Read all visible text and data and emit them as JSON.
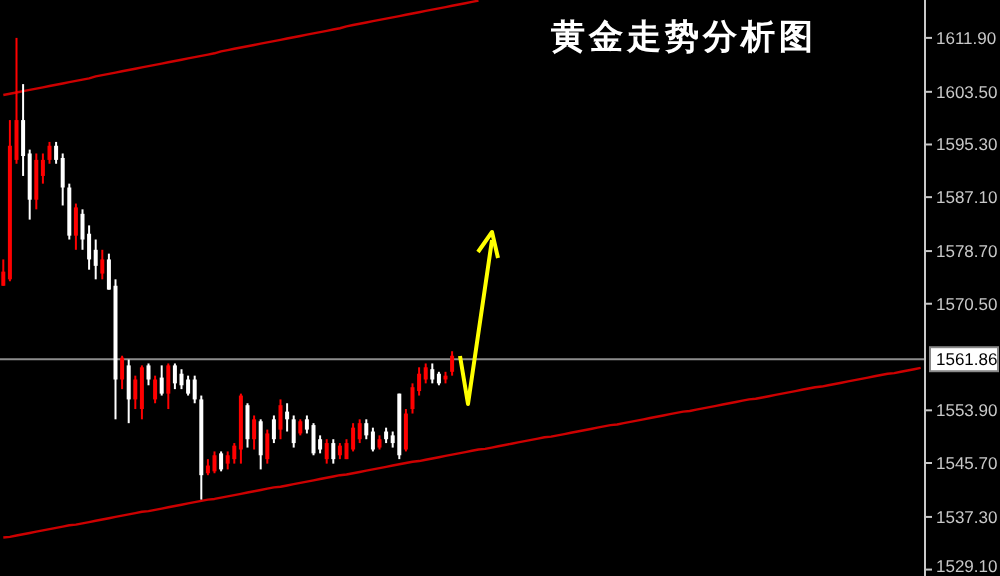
{
  "chart_data": {
    "type": "candlestick",
    "title": "黄金走势分析图",
    "categories": [
      null,
      null,
      null,
      null,
      null,
      null,
      null,
      null,
      null,
      null,
      null,
      null,
      null,
      null,
      null,
      null,
      null,
      null,
      null,
      null,
      null,
      null,
      null,
      null,
      null,
      null,
      null,
      null,
      null,
      null,
      null,
      null,
      null,
      null,
      null,
      null,
      null,
      null,
      null,
      null,
      null,
      null,
      null,
      null,
      null,
      null,
      null,
      null,
      null,
      null,
      null,
      null,
      null,
      null,
      null,
      null,
      null,
      null,
      null,
      null,
      null,
      null,
      null,
      null,
      null,
      null,
      null,
      null,
      null,
      null,
      null,
      null,
      null,
      null,
      null,
      null,
      null,
      null,
      null,
      null,
      null,
      null,
      null,
      null,
      null,
      null,
      null,
      null,
      null,
      null,
      null,
      null,
      null,
      null,
      null,
      null,
      null,
      null,
      null,
      null,
      null,
      null,
      null,
      null,
      null,
      null,
      null,
      null,
      null,
      null,
      null,
      null,
      null,
      null,
      null,
      null,
      null,
      null,
      null,
      null,
      null,
      null,
      null,
      null,
      null,
      null,
      null,
      null,
      null,
      null,
      null,
      null,
      null,
      null,
      null,
      null,
      null,
      null,
      null,
      null
    ],
    "ohlc": [
      [
        1573.3,
        1577.4,
        1573.3,
        1575.5
      ],
      [
        1574.3,
        1599.1,
        1574.0,
        1595.1
      ],
      [
        1592.9,
        1611.9,
        1592.3,
        1599.1
      ],
      [
        1599.1,
        1604.7,
        1590.4,
        1593.5
      ],
      [
        1593.9,
        1594.5,
        1583.6,
        1586.7
      ],
      [
        1586.7,
        1593.9,
        1585.2,
        1592.9
      ],
      [
        1590.4,
        1593.9,
        1589.2,
        1592.9
      ],
      [
        1592.9,
        1595.7,
        1592.3,
        1595.1
      ],
      [
        1595.1,
        1595.7,
        1592.3,
        1592.9
      ],
      [
        1593.2,
        1593.9,
        1585.8,
        1588.6
      ],
      [
        1588.6,
        1589.2,
        1580.5,
        1581.1
      ],
      [
        1581.1,
        1586.1,
        1578.9,
        1585.5
      ],
      [
        1584.5,
        1585.2,
        1578.9,
        1580.5
      ],
      [
        1581.4,
        1582.7,
        1575.8,
        1577.4
      ],
      [
        1578.9,
        1580.5,
        1574.3,
        1576.4
      ],
      [
        1575.2,
        1578.9,
        1574.3,
        1577.4
      ],
      [
        1577.4,
        1578.3,
        1572.7,
        1572.7
      ],
      [
        1573.3,
        1574.3,
        1552.5,
        1558.7
      ],
      [
        1558.7,
        1562.4,
        1557.2,
        1562.1
      ],
      [
        1560.9,
        1561.8,
        1551.9,
        1555.6
      ],
      [
        1555.6,
        1559.3,
        1554.1,
        1558.7
      ],
      [
        1554.1,
        1560.9,
        1552.5,
        1560.6
      ],
      [
        1560.9,
        1561.2,
        1557.8,
        1558.7
      ],
      [
        1555.6,
        1559.3,
        1555.0,
        1558.7
      ],
      [
        1559.0,
        1560.9,
        1556.2,
        1556.5
      ],
      [
        1556.5,
        1561.2,
        1554.1,
        1560.9
      ],
      [
        1560.9,
        1561.2,
        1557.2,
        1558.1
      ],
      [
        1559.6,
        1560.3,
        1557.2,
        1557.8
      ],
      [
        1558.7,
        1559.3,
        1556.2,
        1556.5
      ],
      [
        1558.7,
        1559.3,
        1555.0,
        1555.6
      ],
      [
        1555.6,
        1556.2,
        1540.0,
        1543.8
      ],
      [
        1544.1,
        1546.3,
        1543.8,
        1545.3
      ],
      [
        1544.4,
        1547.5,
        1544.1,
        1546.9
      ],
      [
        1547.2,
        1547.5,
        1544.4,
        1544.7
      ],
      [
        1545.6,
        1547.5,
        1544.7,
        1546.9
      ],
      [
        1546.3,
        1548.8,
        1545.6,
        1548.4
      ],
      [
        1547.8,
        1556.5,
        1545.6,
        1556.2
      ],
      [
        1554.7,
        1555.0,
        1548.1,
        1549.4
      ],
      [
        1549.4,
        1553.1,
        1547.8,
        1552.5
      ],
      [
        1552.2,
        1552.5,
        1544.7,
        1546.9
      ],
      [
        1546.3,
        1550.9,
        1545.6,
        1550.3
      ],
      [
        1552.5,
        1553.1,
        1548.8,
        1549.4
      ],
      [
        1550.9,
        1555.6,
        1549.4,
        1554.7
      ],
      [
        1553.7,
        1555.0,
        1550.6,
        1552.5
      ],
      [
        1552.5,
        1553.1,
        1548.1,
        1548.8
      ],
      [
        1550.3,
        1552.5,
        1550.0,
        1552.2
      ],
      [
        1552.5,
        1553.1,
        1550.3,
        1550.9
      ],
      [
        1551.6,
        1551.9,
        1546.9,
        1547.2
      ],
      [
        1549.4,
        1550.0,
        1547.2,
        1547.8
      ],
      [
        1546.3,
        1549.4,
        1545.6,
        1548.8
      ],
      [
        1548.8,
        1549.4,
        1545.6,
        1546.3
      ],
      [
        1546.9,
        1548.8,
        1546.3,
        1548.4
      ],
      [
        1546.3,
        1549.4,
        1546.3,
        1548.8
      ],
      [
        1547.8,
        1551.9,
        1547.5,
        1551.2
      ],
      [
        1549.4,
        1552.5,
        1548.8,
        1551.9
      ],
      [
        1551.9,
        1552.5,
        1549.4,
        1550.0
      ],
      [
        1550.6,
        1551.2,
        1547.5,
        1547.8
      ],
      [
        1548.1,
        1550.0,
        1547.8,
        1549.4
      ],
      [
        1550.6,
        1551.2,
        1548.8,
        1549.4
      ],
      [
        1550.0,
        1550.6,
        1548.1,
        1548.8
      ],
      [
        1556.5,
        1556.5,
        1546.3,
        1546.9
      ],
      [
        1547.8,
        1554.1,
        1547.5,
        1553.4
      ],
      [
        1554.1,
        1558.1,
        1553.4,
        1557.5
      ],
      [
        1556.9,
        1560.6,
        1556.2,
        1559.6
      ],
      [
        1558.7,
        1561.2,
        1558.1,
        1560.6
      ],
      [
        1560.3,
        1561.2,
        1558.1,
        1558.7
      ],
      [
        1559.6,
        1559.9,
        1557.8,
        1558.1
      ],
      [
        1558.7,
        1559.9,
        1558.1,
        1559.3
      ],
      [
        1559.9,
        1563.1,
        1559.3,
        1562.4
      ],
      null,
      null,
      null,
      null,
      null,
      null,
      null,
      null,
      null,
      null,
      null,
      null,
      null,
      null,
      null,
      null,
      null,
      null,
      null,
      null,
      null,
      null,
      null,
      null,
      null,
      null,
      null,
      null,
      null,
      null,
      null,
      null,
      null,
      null,
      null,
      null,
      null,
      null,
      null,
      null,
      null,
      null,
      null,
      null,
      null,
      null,
      null,
      null,
      null,
      null,
      null,
      null,
      null,
      null,
      null,
      null,
      null,
      null,
      null,
      null,
      null,
      null,
      null,
      null,
      null,
      null,
      null,
      null,
      null,
      null,
      null
    ],
    "series": [
      {
        "type": "line",
        "color": "#cc0000",
        "values": [
          1603.0,
          1603.2,
          1603.4,
          1603.6,
          1603.8,
          1604.0,
          1604.2,
          1604.4,
          1604.6,
          1604.8,
          1605.0,
          1605.2,
          1605.4,
          1605.6,
          1605.9,
          1606.1,
          1606.3,
          1606.5,
          1606.7,
          1606.9,
          1607.1,
          1607.3,
          1607.5,
          1607.7,
          1607.9,
          1608.1,
          1608.3,
          1608.5,
          1608.7,
          1608.9,
          1609.1,
          1609.3,
          1609.5,
          1609.8,
          1610.0,
          1610.2,
          1610.4,
          1610.6,
          1610.8,
          1611.0,
          1611.2,
          1611.4,
          1611.6,
          1611.8,
          1612.0,
          1612.2,
          1612.4,
          1612.6,
          1612.8,
          1613.0,
          1613.2,
          1613.4,
          1613.7,
          1613.9,
          1614.1,
          1614.3,
          1614.5,
          1614.7,
          1614.9,
          1615.1,
          1615.3,
          1615.5,
          1615.7,
          1615.9,
          1616.1,
          1616.3,
          1616.5,
          1616.7,
          1616.9,
          1617.1,
          1617.3,
          1617.5,
          1617.7,
          null,
          null,
          null,
          null,
          null,
          null,
          null,
          null,
          null,
          null,
          null,
          null,
          null,
          null,
          null,
          null,
          null,
          null,
          null,
          null,
          null,
          null,
          null,
          null,
          null,
          null,
          null,
          null,
          null,
          null,
          null,
          null,
          null,
          null,
          null,
          null,
          null,
          null,
          null,
          null,
          null,
          null,
          null,
          null,
          null,
          null,
          null,
          null,
          null,
          null,
          null,
          null,
          null,
          null,
          null,
          null,
          null,
          null,
          null,
          null,
          null,
          null,
          null,
          null,
          null,
          null,
          null
        ]
      },
      {
        "type": "line",
        "color": "#cc0000",
        "values": [
          1534.1,
          1534.2,
          1534.4,
          1534.6,
          1534.8,
          1535.0,
          1535.2,
          1535.4,
          1535.6,
          1535.8,
          1536.0,
          1536.1,
          1536.3,
          1536.5,
          1536.7,
          1536.9,
          1537.1,
          1537.3,
          1537.5,
          1537.7,
          1537.9,
          1538.1,
          1538.2,
          1538.4,
          1538.6,
          1538.8,
          1539.0,
          1539.2,
          1539.4,
          1539.6,
          1539.8,
          1540.0,
          1540.1,
          1540.3,
          1540.5,
          1540.7,
          1540.9,
          1541.1,
          1541.3,
          1541.5,
          1541.7,
          1541.9,
          1542.0,
          1542.2,
          1542.4,
          1542.6,
          1542.8,
          1543.0,
          1543.2,
          1543.4,
          1543.6,
          1543.8,
          1543.9,
          1544.1,
          1544.3,
          1544.5,
          1544.7,
          1544.9,
          1545.1,
          1545.3,
          1545.5,
          1545.7,
          1545.9,
          1546.0,
          1546.2,
          1546.4,
          1546.6,
          1546.8,
          1547.0,
          1547.2,
          1547.4,
          1547.6,
          1547.8,
          1547.9,
          1548.1,
          1548.3,
          1548.5,
          1548.7,
          1548.9,
          1549.1,
          1549.3,
          1549.5,
          1549.7,
          1549.8,
          1550.0,
          1550.2,
          1550.4,
          1550.6,
          1550.8,
          1551.0,
          1551.2,
          1551.4,
          1551.6,
          1551.7,
          1551.9,
          1552.1,
          1552.3,
          1552.5,
          1552.7,
          1552.9,
          1553.1,
          1553.3,
          1553.5,
          1553.7,
          1553.8,
          1554.0,
          1554.2,
          1554.4,
          1554.6,
          1554.8,
          1555.0,
          1555.2,
          1555.4,
          1555.6,
          1555.7,
          1555.9,
          1556.1,
          1556.3,
          1556.5,
          1556.7,
          1556.9,
          1557.1,
          1557.3,
          1557.5,
          1557.6,
          1557.8,
          1558.0,
          1558.2,
          1558.4,
          1558.6,
          1558.8,
          1559.0,
          1559.2,
          1559.4,
          1559.6,
          1559.7,
          1559.9,
          1560.1,
          1560.3,
          1560.5
        ]
      }
    ],
    "ref_lines": [
      {
        "axis": "y",
        "value": 1561.86,
        "label": "1561.86",
        "color": "#8c8c8c"
      }
    ],
    "ylim": [
      1528.1,
      1617.8
    ],
    "yticks": [
      {
        "value": 1611.9,
        "label": "1611.90"
      },
      {
        "value": 1603.5,
        "label": "1603.50"
      },
      {
        "value": 1595.3,
        "label": "1595.30"
      },
      {
        "value": 1587.1,
        "label": "1587.10"
      },
      {
        "value": 1578.7,
        "label": "1578.70"
      },
      {
        "value": 1570.5,
        "label": "1570.50"
      },
      {
        "value": 1553.9,
        "label": "1553.90"
      },
      {
        "value": 1545.7,
        "label": "1545.70"
      },
      {
        "value": 1537.3,
        "label": "1537.30"
      },
      {
        "value": 1529.1,
        "label": "1529.10"
      }
    ],
    "tick_labels": "y"
  }
}
